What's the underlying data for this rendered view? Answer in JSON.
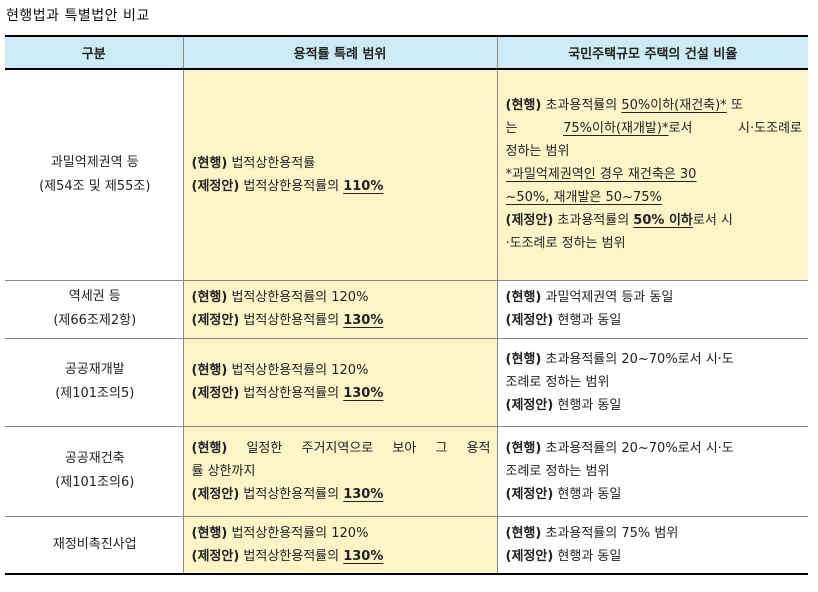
{
  "title": "현행법과 특별법안 비교",
  "headers": [
    "구분",
    "용적률 특례 범위",
    "국민주택규모 주택의 건설 비율"
  ],
  "rows": [
    {
      "cat": [
        "과밀억제권역 등",
        "(제54조 및 제55조)"
      ],
      "mid": [
        {
          "tag": "(현행)",
          "text": " 법적상한용적률"
        },
        {
          "tag": "(제정안)",
          "text": " 법적상한용적률의 ",
          "ul": "110%"
        }
      ],
      "right": {
        "l1_tag": "(현행)",
        "l1_a": " 초과용적률의 ",
        "l1_u": "50%이하(재건축)*",
        "l1_b": " 또",
        "l2_a": "는 ",
        "l2_u": "75%이하(재개발)*",
        "l2_b": "로서 시·도조례로",
        "l3": "정하는 범위",
        "l4": "*과밀억제권역인 경우 재건축은 30",
        "l5": "~50%, 재개발은 50~75%",
        "l6_tag": "(제정안)",
        "l6_a": " 초과용적률의 ",
        "l6_u": "50% 이하",
        "l6_b": "로서 시",
        "l7": "·도조례로 정하는 범위"
      }
    },
    {
      "cat": [
        "역세권 등",
        "(제66조제2항)"
      ],
      "mid": [
        {
          "tag": "(현행)",
          "text": " 법적상한용적률의 120%"
        },
        {
          "tag": "(제정안)",
          "text": " 법적상한용적률의 ",
          "ul": "130%"
        }
      ],
      "right": [
        {
          "tag": "(현행)",
          "text": " 과밀억제권역 등과 동일"
        },
        {
          "tag": "(제정안)",
          "text": " 현행과 동일"
        }
      ]
    },
    {
      "cat": [
        "공공재개발",
        "(제101조의5)"
      ],
      "mid": [
        {
          "tag": "(현행)",
          "text": " 법적상한용적률의 120%"
        },
        {
          "tag": "(제정안)",
          "text": " 법적상한용적률의 ",
          "ul": "130%"
        }
      ],
      "right": [
        {
          "tag": "(현행)",
          "text": " 초과용적률의 20~70%로서 시·도"
        },
        {
          "tag": "",
          "text": " 조례로 정하는 범위"
        },
        {
          "tag": "(제정안)",
          "text": " 현행과 동일"
        }
      ]
    },
    {
      "cat": [
        "공공재건축",
        "(제101조의6)"
      ],
      "mid": [
        {
          "tag": "(현행)",
          "text": " 일정한 주거지역으로 보아 그 용적"
        },
        {
          "tag": "",
          "text": "률 상한까지"
        },
        {
          "tag": "(제정안)",
          "text": " 법적상한용적률의 ",
          "ul": "130%"
        }
      ],
      "right": [
        {
          "tag": "(현행)",
          "text": " 초과용적률의 20~70%로서 시·도"
        },
        {
          "tag": "",
          "text": " 조례로 정하는 범위"
        },
        {
          "tag": "(제정안)",
          "text": " 현행과 동일"
        }
      ]
    },
    {
      "cat": [
        "재정비촉진사업"
      ],
      "mid": [
        {
          "tag": "(현행)",
          "text": " 법적상한용적률의 120%"
        },
        {
          "tag": "(제정안)",
          "text": " 법적상한용적률의 ",
          "ul": "130%"
        }
      ],
      "right": [
        {
          "tag": "(현행)",
          "text": " 초과용적률의 75% 범위"
        },
        {
          "tag": "(제정안)",
          "text": " 현행과 동일"
        }
      ]
    }
  ]
}
